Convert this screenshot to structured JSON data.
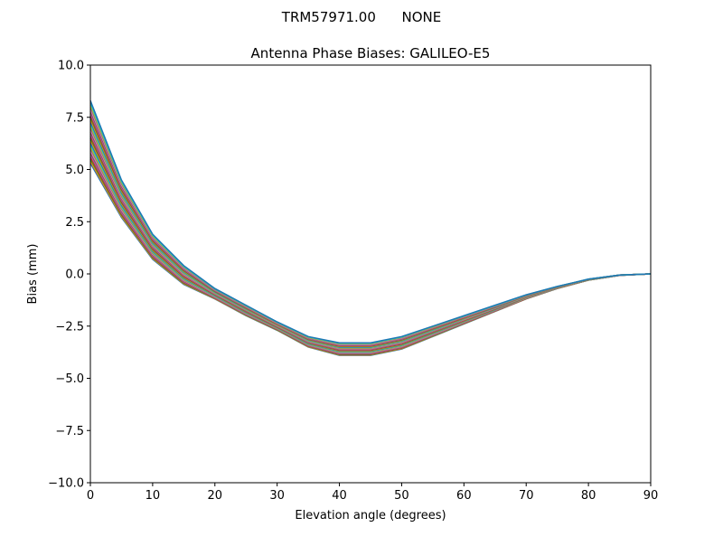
{
  "figure": {
    "suptitle": "TRM57971.00      NONE"
  },
  "chart_data": {
    "type": "line",
    "title": "Antenna Phase Biases: GALILEO-E5",
    "xlabel": "Elevation angle (degrees)",
    "ylabel": "Bias (mm)",
    "xlim": [
      0,
      90
    ],
    "ylim": [
      -10,
      10
    ],
    "grid": false,
    "xticks": [
      0,
      10,
      20,
      30,
      40,
      50,
      60,
      70,
      80,
      90
    ],
    "xtick_labels": [
      "0",
      "10",
      "20",
      "30",
      "40",
      "50",
      "60",
      "70",
      "80",
      "90"
    ],
    "yticks": [
      -10,
      -7.5,
      -5,
      -2.5,
      0,
      2.5,
      5,
      7.5,
      10
    ],
    "ytick_labels": [
      "−10.0",
      "−7.5",
      "−5.0",
      "−2.5",
      "0.0",
      "2.5",
      "5.0",
      "7.5",
      "10.0"
    ],
    "x": [
      0,
      5,
      10,
      15,
      20,
      25,
      30,
      35,
      40,
      45,
      50,
      55,
      60,
      65,
      70,
      75,
      80,
      85,
      90
    ],
    "colors": [
      "#1f77b4",
      "#ff7f0e",
      "#2ca02c",
      "#d62728",
      "#9467bd",
      "#8c564b",
      "#e377c2",
      "#7f7f7f",
      "#bcbd22",
      "#17becf"
    ],
    "series": [
      {
        "values": [
          5.3,
          2.7,
          0.7,
          -0.5,
          -1.2,
          -2.0,
          -2.7,
          -3.5,
          -3.9,
          -3.9,
          -3.6,
          -3.0,
          -2.4,
          -1.8,
          -1.2,
          -0.7,
          -0.3,
          -0.07,
          0
        ]
      },
      {
        "values": [
          5.9,
          3.06,
          0.94,
          -0.32,
          -1.1,
          -1.9,
          -2.62,
          -3.4,
          -3.78,
          -3.78,
          -3.48,
          -2.9,
          -2.32,
          -1.74,
          -1.16,
          -0.68,
          -0.29,
          -0.066,
          0
        ]
      },
      {
        "values": [
          6.5,
          3.42,
          1.18,
          -0.14,
          -1.0,
          -1.8,
          -2.54,
          -3.3,
          -3.66,
          -3.66,
          -3.36,
          -2.8,
          -2.24,
          -1.68,
          -1.12,
          -0.66,
          -0.28,
          -0.062,
          0
        ]
      },
      {
        "values": [
          7.1,
          3.78,
          1.42,
          0.04,
          -0.9,
          -1.7,
          -2.46,
          -3.2,
          -3.54,
          -3.54,
          -3.24,
          -2.7,
          -2.16,
          -1.62,
          -1.08,
          -0.64,
          -0.27,
          -0.058,
          0
        ]
      },
      {
        "values": [
          7.7,
          4.14,
          1.66,
          0.22,
          -0.8,
          -1.6,
          -2.38,
          -3.1,
          -3.42,
          -3.42,
          -3.12,
          -2.6,
          -2.08,
          -1.56,
          -1.04,
          -0.62,
          -0.26,
          -0.054,
          0
        ]
      },
      {
        "values": [
          8.3,
          4.5,
          1.9,
          0.4,
          -0.7,
          -1.5,
          -2.3,
          -3.0,
          -3.3,
          -3.3,
          -3.0,
          -2.5,
          -2.0,
          -1.5,
          -1.0,
          -0.6,
          -0.25,
          -0.05,
          0
        ]
      }
    ]
  }
}
